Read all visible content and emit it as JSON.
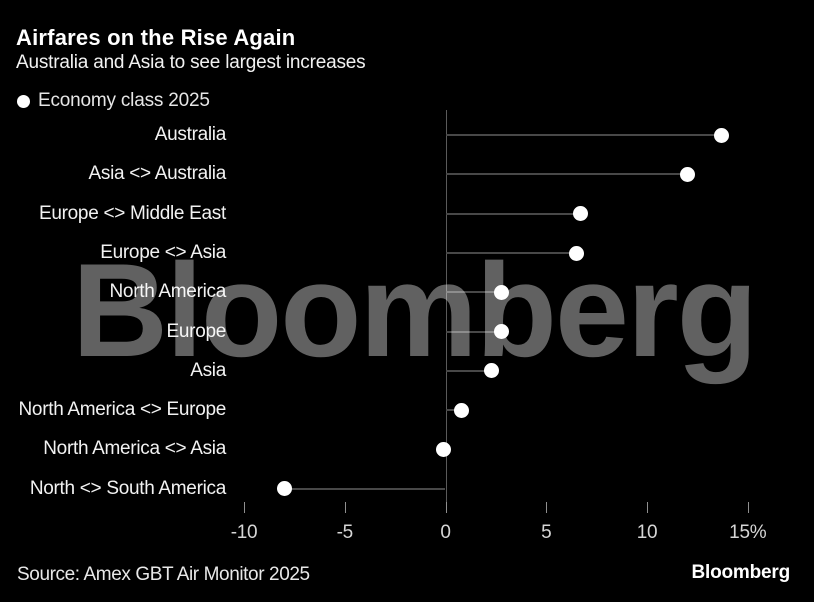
{
  "header": {
    "title": "Airfares on the Rise Again",
    "subtitle": "Australia and Asia to see largest increases"
  },
  "legend": {
    "marker": "dot-icon",
    "marker_color": "#ffffff",
    "label": "Economy class 2025"
  },
  "chart_data": {
    "type": "scatter",
    "style": "lollipop",
    "orientation": "horizontal",
    "title": "Airfares on the Rise Again",
    "subtitle": "Australia and Asia to see largest increases",
    "categories": [
      "Australia",
      "Asia <> Australia",
      "Europe <> Middle East",
      "Europe <> Asia",
      "North America",
      "Europe",
      "Asia",
      "North America <> Europe",
      "North America <> Asia",
      "North <> South America"
    ],
    "series": [
      {
        "name": "Economy class 2025",
        "values": [
          13.7,
          12.0,
          6.7,
          6.5,
          2.8,
          2.8,
          2.3,
          0.8,
          -0.1,
          -8.0
        ]
      }
    ],
    "unit": "%",
    "xlabel": "",
    "ylabel": "",
    "x_ticks": [
      -10,
      -5,
      0,
      5,
      10,
      15
    ],
    "x_tick_labels": [
      "-10",
      "-5",
      "0",
      "5",
      "10",
      "15%"
    ],
    "xlim": [
      -11,
      16.5
    ],
    "baseline": 0,
    "grid": "off",
    "legend_position": "top-left",
    "colors": {
      "dot": "#ffffff",
      "stem": "#484848",
      "axis": "#5a5a5a",
      "tick": "#8f8f8f",
      "tick_label": "#d6d6d6",
      "category_label": "#f2f2f2",
      "background": "#000000"
    }
  },
  "watermark": {
    "text": "Bloomberg"
  },
  "footer": {
    "source": "Source: Amex GBT Air Monitor 2025",
    "brand": "Bloomberg"
  }
}
